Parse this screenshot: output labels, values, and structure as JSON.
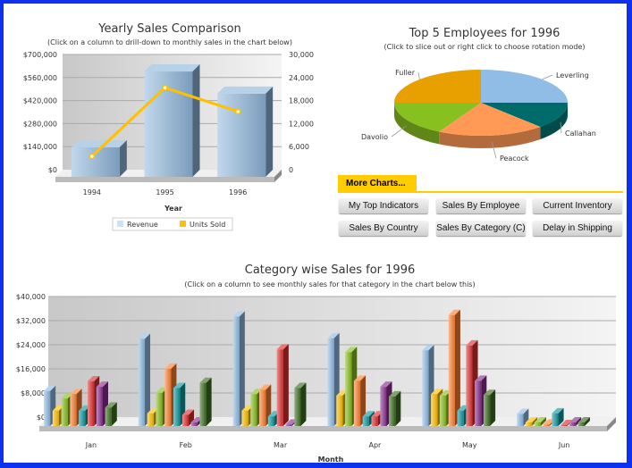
{
  "chart_data": [
    {
      "type": "bar",
      "title": "Yearly Sales Comparison",
      "subtitle": "(Click on a column to drill-down to monthly sales in the chart below)",
      "xlabel": "Year",
      "categories": [
        "1994",
        "1995",
        "1996"
      ],
      "ylim": [
        0,
        700000
      ],
      "y_ticks": [
        "$0",
        "$140,000",
        "$280,000",
        "$420,000",
        "$560,000",
        "$700,000"
      ],
      "y2lim": [
        0,
        30000
      ],
      "y2_ticks": [
        "0",
        "6,000",
        "12,000",
        "18,000",
        "24,000",
        "30,000"
      ],
      "series": [
        {
          "name": "Revenue",
          "type": "bar",
          "axis": "left",
          "color": "#8fb8dc",
          "values": [
            179000,
            640000,
            505000
          ]
        },
        {
          "name": "Units Sold",
          "type": "line",
          "axis": "right",
          "color": "#ffc000",
          "values": [
            5350,
            23200,
            17000
          ]
        }
      ],
      "legend": "bottom",
      "grid": true
    },
    {
      "type": "pie",
      "title": "Top 5 Employees for 1996",
      "subtitle": "(Click to slice out or right click to choose rotation mode)",
      "labels": [
        "Leverling",
        "Callahan",
        "Peacock",
        "Davolio",
        "Fuller"
      ],
      "values": [
        25,
        13,
        20,
        17,
        25
      ],
      "colors": [
        "#8fbde6",
        "#006b6b",
        "#ff9955",
        "#88c020",
        "#e8a000"
      ]
    },
    {
      "type": "bar",
      "title": "Category wise Sales for 1996",
      "subtitle": "(Click on a column to see monthly sales for that category in the chart below this)",
      "xlabel": "Month",
      "categories": [
        "Jan",
        "Feb",
        "Mar",
        "Apr",
        "May",
        "Jun"
      ],
      "ylim": [
        0,
        40000
      ],
      "y_ticks": [
        "$0",
        "$8,000",
        "$16,000",
        "$24,000",
        "$32,000",
        "$40,000"
      ],
      "grid": true,
      "series": [
        {
          "color": "#8fbde6",
          "values": [
            11600,
            28900,
            36300,
            29100,
            25100,
            4000
          ]
        },
        {
          "color": "#ffc000",
          "values": [
            5100,
            4200,
            5100,
            10100,
            10600,
            1200
          ]
        },
        {
          "color": "#88c020",
          "values": [
            9100,
            11000,
            10600,
            24500,
            10100,
            1200
          ]
        },
        {
          "color": "#ff8030",
          "values": [
            10600,
            19000,
            12000,
            15000,
            36800,
            500
          ]
        },
        {
          "color": "#109aa0",
          "values": [
            5100,
            12600,
            3200,
            3200,
            5100,
            4200
          ]
        },
        {
          "color": "#e03030",
          "values": [
            14800,
            3700,
            25400,
            3200,
            26700,
            300
          ]
        },
        {
          "color": "#8a3090",
          "values": [
            13000,
            1200,
            500,
            13000,
            15000,
            1200
          ]
        },
        {
          "color": "#3d7020",
          "values": [
            6100,
            14300,
            12600,
            9800,
            10300,
            1200
          ]
        }
      ]
    }
  ],
  "more_charts": {
    "tab_label": "More Charts...",
    "buttons": [
      "My Top Indicators",
      "Sales By Employee",
      "Current Inventory",
      "Sales By Country",
      "Sales By Category (C)",
      "Delay in Shipping"
    ]
  }
}
